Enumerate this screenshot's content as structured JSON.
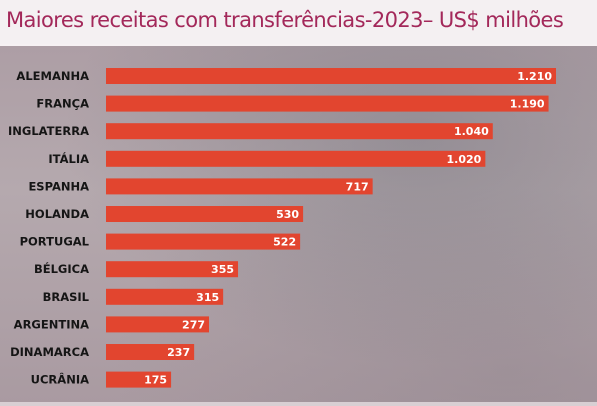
{
  "chart_data": {
    "type": "bar",
    "orientation": "horizontal",
    "title": "Maiores receitas com transferências-2023– US$ milhões",
    "categories": [
      "ALEMANHA",
      "FRANÇA",
      "INGLATERRA",
      "ITÁLIA",
      "ESPANHA",
      "HOLANDA",
      "PORTUGAL",
      "BÉLGICA",
      "BRASIL",
      "ARGENTINA",
      "DINAMARCA",
      "UCRÂNIA"
    ],
    "values": [
      1210,
      1190,
      1040,
      1020,
      717,
      530,
      522,
      355,
      315,
      277,
      237,
      175
    ],
    "value_labels": [
      "1.210",
      "1.190",
      "1.040",
      "1.020",
      "717",
      "530",
      "522",
      "355",
      "315",
      "277",
      "237",
      "175"
    ],
    "xlim": [
      0,
      1210
    ],
    "grid": false,
    "colors": {
      "bar": "#e2452f",
      "title": "#a3285a"
    }
  }
}
